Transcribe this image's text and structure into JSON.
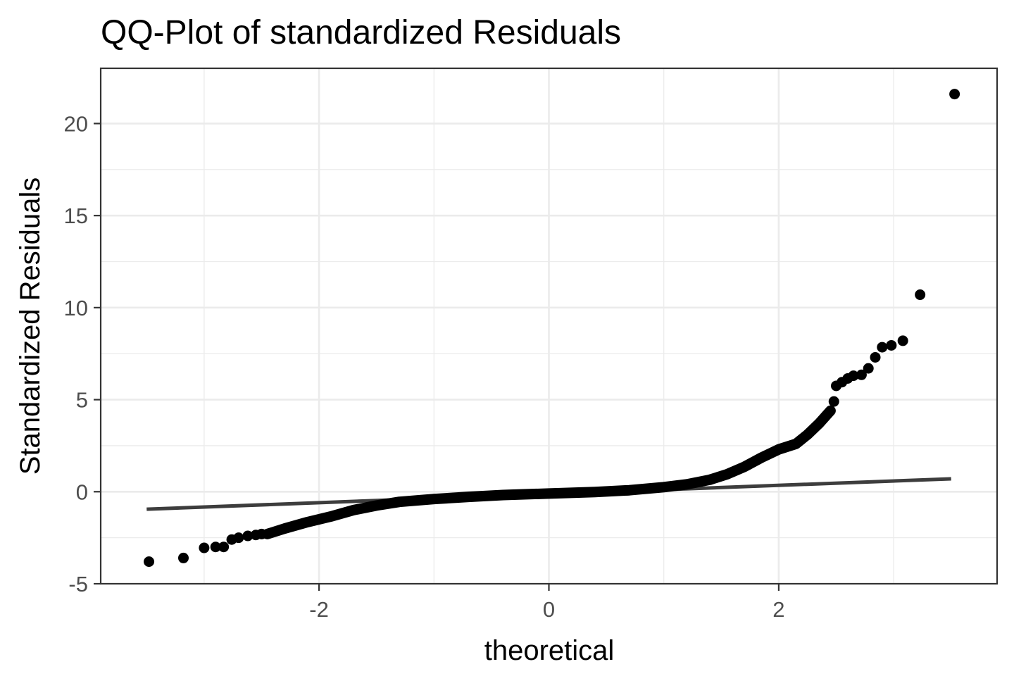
{
  "chart_data": {
    "type": "scatter",
    "title": "QQ-Plot of standardized Residuals",
    "xlabel": "theoretical",
    "ylabel": "Standardized Residuals",
    "xlim": [
      -3.9,
      3.9
    ],
    "ylim": [
      -5,
      23
    ],
    "x_ticks": [
      -2,
      0,
      2
    ],
    "x_tick_labels": [
      "-2",
      "0",
      "2"
    ],
    "y_ticks": [
      -5,
      0,
      5,
      10,
      15,
      20
    ],
    "y_tick_labels": [
      "-5",
      "0",
      "5",
      "10",
      "15",
      "20"
    ],
    "grid": true,
    "legend": "none",
    "point_color": "#000000",
    "line_color": "#3d3d3d",
    "reference_line": {
      "x": [
        -3.5,
        3.5
      ],
      "y": [
        -0.95,
        0.7
      ]
    },
    "quantile_curve": [
      [
        -2.45,
        -2.3
      ],
      [
        -2.3,
        -2.0
      ],
      [
        -2.1,
        -1.65
      ],
      [
        -1.9,
        -1.35
      ],
      [
        -1.7,
        -1.0
      ],
      [
        -1.5,
        -0.75
      ],
      [
        -1.3,
        -0.55
      ],
      [
        -1.0,
        -0.4
      ],
      [
        -0.7,
        -0.28
      ],
      [
        -0.4,
        -0.18
      ],
      [
        0.0,
        -0.1
      ],
      [
        0.4,
        -0.02
      ],
      [
        0.7,
        0.08
      ],
      [
        1.0,
        0.25
      ],
      [
        1.2,
        0.4
      ],
      [
        1.4,
        0.65
      ],
      [
        1.55,
        0.95
      ],
      [
        1.7,
        1.35
      ],
      [
        1.85,
        1.85
      ],
      [
        2.0,
        2.3
      ],
      [
        2.15,
        2.6
      ],
      [
        2.25,
        3.1
      ],
      [
        2.35,
        3.7
      ],
      [
        2.45,
        4.4
      ]
    ],
    "points": [
      [
        -3.48,
        -3.8
      ],
      [
        -3.18,
        -3.6
      ],
      [
        -3.0,
        -3.05
      ],
      [
        -2.9,
        -3.0
      ],
      [
        -2.83,
        -3.0
      ],
      [
        -2.76,
        -2.6
      ],
      [
        -2.7,
        -2.5
      ],
      [
        -2.62,
        -2.4
      ],
      [
        -2.55,
        -2.35
      ],
      [
        -2.5,
        -2.3
      ],
      [
        2.48,
        4.9
      ],
      [
        2.5,
        5.75
      ],
      [
        2.55,
        5.95
      ],
      [
        2.6,
        6.15
      ],
      [
        2.65,
        6.3
      ],
      [
        2.72,
        6.35
      ],
      [
        2.78,
        6.7
      ],
      [
        2.84,
        7.3
      ],
      [
        2.9,
        7.85
      ],
      [
        2.98,
        7.95
      ],
      [
        3.08,
        8.2
      ],
      [
        3.23,
        10.7
      ],
      [
        3.53,
        21.6
      ]
    ]
  }
}
